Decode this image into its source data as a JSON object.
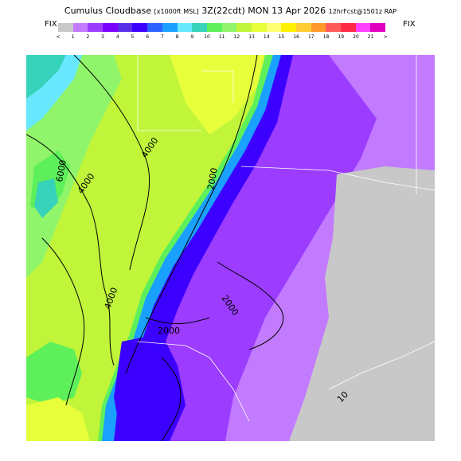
{
  "header": {
    "title_main": "Cumulus Cloudbase",
    "title_units": "[x1000ft MSL]",
    "title_time": "3Z(22cdt) MON 13 Apr 2026",
    "title_fcst": "12hrFcst@1501z RAP"
  },
  "colorbar": {
    "left_label": "FIX",
    "right_label": "FIX",
    "swatches": [
      {
        "color": "#c8c8c8",
        "label": "<"
      },
      {
        "color": "#c27bff",
        "label": "1"
      },
      {
        "color": "#9b3cff",
        "label": "2"
      },
      {
        "color": "#7a00ff",
        "label": "3"
      },
      {
        "color": "#5a2ee8",
        "label": "4"
      },
      {
        "color": "#3c00ff",
        "label": "5"
      },
      {
        "color": "#2a62ff",
        "label": "6"
      },
      {
        "color": "#1aa0ff",
        "label": "7"
      },
      {
        "color": "#68e8ff",
        "label": "8"
      },
      {
        "color": "#36d2ba",
        "label": "9"
      },
      {
        "color": "#5ef05a",
        "label": "10"
      },
      {
        "color": "#90f56a",
        "label": "11"
      },
      {
        "color": "#c0f53a",
        "label": "12"
      },
      {
        "color": "#e6ff3a",
        "label": "13"
      },
      {
        "color": "#ffff73",
        "label": "14"
      },
      {
        "color": "#fff000",
        "label": "15"
      },
      {
        "color": "#ffcc33",
        "label": "16"
      },
      {
        "color": "#ff9a2a",
        "label": "17"
      },
      {
        "color": "#ff5a5a",
        "label": "18"
      },
      {
        "color": "#ff2a44",
        "label": "19"
      },
      {
        "color": "#ff40ff",
        "label": "20"
      },
      {
        "color": "#e000c0",
        "label": "21"
      },
      {
        "color": "#ffffff",
        "label": ">"
      }
    ]
  },
  "map": {
    "contour_labels": [
      "6000",
      "4000",
      "4000",
      "2000",
      "2000",
      "2000",
      "4000",
      "10"
    ]
  }
}
